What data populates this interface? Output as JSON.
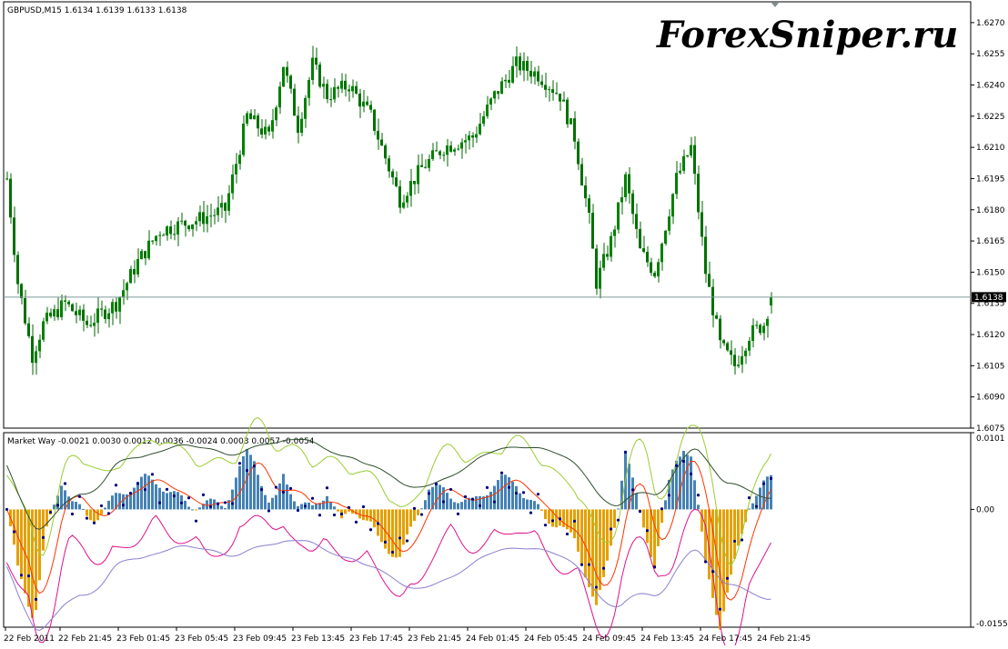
{
  "watermark": "ForexSniper.ru",
  "main_chart": {
    "header": "GBPUSD,M15  1.6134 1.6139 1.6133 1.6138",
    "current_price_label": "1.6138",
    "current_price": 1.6138,
    "price_ticks": [
      "1.6270",
      "1.6255",
      "1.6240",
      "1.6225",
      "1.6210",
      "1.6195",
      "1.6180",
      "1.6165",
      "1.6150",
      "1.6135",
      "1.6120",
      "1.6105",
      "1.6090",
      "1.6075"
    ],
    "colors": {
      "bull": "#008000",
      "bear": "#008000",
      "line": "#7f9a9a"
    }
  },
  "indicator": {
    "header": "Market Way -0.0021 0.0030 0.0012 0.0036 -0.0024 0.0003 0.0057 -0.0054",
    "ticks": [
      "0.0101",
      "0.00",
      "-0.0155"
    ],
    "colors": {
      "hist_pos": "#e5a000",
      "hist_neg": "#4682b4",
      "upper_band": "#9acd32",
      "outer_upper": "#2f4f2f",
      "lower_band": "#e0118a",
      "outer_lower": "#8a7fd0",
      "signal": "#ff3300",
      "dots": "#000080"
    }
  },
  "time_axis": [
    "22 Feb 2011",
    "22 Feb 21:45",
    "23 Feb 01:45",
    "23 Feb 05:45",
    "23 Feb 09:45",
    "23 Feb 13:45",
    "23 Feb 17:45",
    "23 Feb 21:45",
    "24 Feb 01:45",
    "24 Feb 05:45",
    "24 Feb 09:45",
    "24 Feb 13:45",
    "24 Feb 17:45",
    "24 Feb 21:45"
  ],
  "chart_data": [
    {
      "type": "candlestick",
      "title": "GBPUSD,M15",
      "ylim": [
        1.6075,
        1.628
      ],
      "close_keypoints": [
        [
          0,
          1.6195
        ],
        [
          3,
          1.6145
        ],
        [
          7,
          1.611
        ],
        [
          10,
          1.6125
        ],
        [
          16,
          1.6135
        ],
        [
          22,
          1.6125
        ],
        [
          30,
          1.6135
        ],
        [
          36,
          1.6155
        ],
        [
          42,
          1.617
        ],
        [
          52,
          1.6175
        ],
        [
          60,
          1.618
        ],
        [
          66,
          1.6225
        ],
        [
          72,
          1.6215
        ],
        [
          76,
          1.625
        ],
        [
          80,
          1.622
        ],
        [
          84,
          1.625
        ],
        [
          88,
          1.6235
        ],
        [
          94,
          1.624
        ],
        [
          100,
          1.6225
        ],
        [
          104,
          1.6205
        ],
        [
          108,
          1.6185
        ],
        [
          114,
          1.62
        ],
        [
          120,
          1.621
        ],
        [
          128,
          1.6215
        ],
        [
          134,
          1.6235
        ],
        [
          140,
          1.625
        ],
        [
          146,
          1.6245
        ],
        [
          152,
          1.6235
        ],
        [
          156,
          1.6215
        ],
        [
          160,
          1.6175
        ],
        [
          162,
          1.6145
        ],
        [
          166,
          1.6165
        ],
        [
          170,
          1.6195
        ],
        [
          174,
          1.616
        ],
        [
          178,
          1.615
        ],
        [
          184,
          1.6195
        ],
        [
          188,
          1.621
        ],
        [
          192,
          1.615
        ],
        [
          196,
          1.6115
        ],
        [
          200,
          1.6105
        ],
        [
          204,
          1.612
        ],
        [
          208,
          1.6125
        ],
        [
          210,
          1.6138
        ]
      ],
      "last": {
        "open": 1.6134,
        "high": 1.6139,
        "low": 1.6133,
        "close": 1.6138
      }
    },
    {
      "type": "histogram-with-lines",
      "title": "Market Way",
      "ylim": [
        -0.0155,
        0.0101
      ],
      "last_values": [
        -0.0021,
        0.003,
        0.0012,
        0.0036,
        -0.0024,
        0.0003,
        0.0057,
        -0.0054
      ]
    }
  ]
}
